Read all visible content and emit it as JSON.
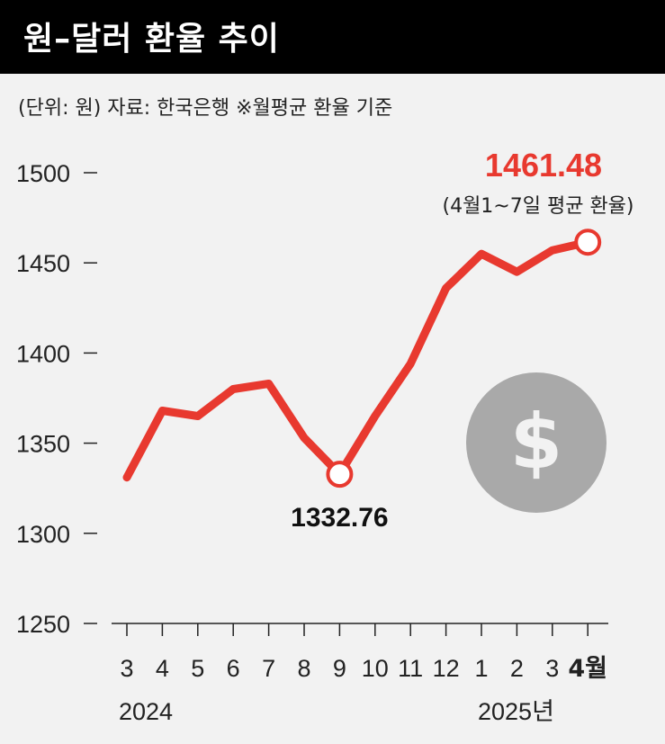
{
  "header": {
    "title": "원–달러 환율 추이",
    "subtitle": "(단위: 원)  자료: 한국은행  ※월평균 환율 기준"
  },
  "colors": {
    "line": "#e8392f",
    "highlight_text": "#e8392f",
    "coin": "#a9a9a9",
    "background": "#f2f2f2"
  },
  "icon": "dollar-coin-icon",
  "chart_data": {
    "type": "line",
    "categories": [
      "3",
      "4",
      "5",
      "6",
      "7",
      "8",
      "9",
      "10",
      "11",
      "12",
      "1",
      "2",
      "3",
      "4월"
    ],
    "year_labels": [
      "2024",
      "2025년"
    ],
    "series": [
      {
        "values": [
          1331,
          1368,
          1365,
          1380,
          1383,
          1353,
          1332.76,
          1365,
          1394,
          1436,
          1455,
          1445,
          1457,
          1461.48
        ]
      }
    ],
    "yticks": [
      "1250",
      "1300",
      "1350",
      "1400",
      "1450",
      "1500"
    ],
    "ylim": [
      1250,
      1500
    ],
    "annotations": [
      {
        "label": "1461.48",
        "sublabel": "(4월1~7일 평균 환율)",
        "index": 13
      },
      {
        "label": "1332.76",
        "index": 6
      }
    ]
  }
}
